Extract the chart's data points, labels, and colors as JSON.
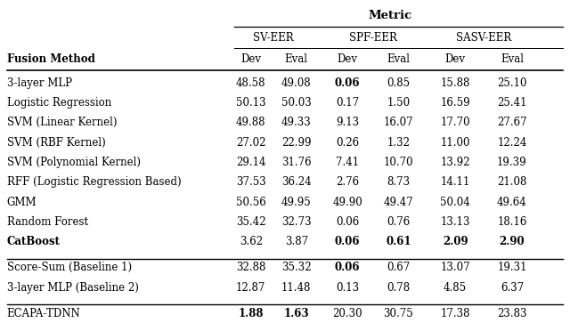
{
  "title": "Metric",
  "col_groups": [
    "SV-EER",
    "SPF-EER",
    "SASV-EER"
  ],
  "sub_cols": [
    "Dev",
    "Eval",
    "Dev",
    "Eval",
    "Dev",
    "Eval"
  ],
  "row_header": "Fusion Method",
  "rows": [
    {
      "method": "3-layer MLP",
      "vals": [
        "48.58",
        "49.08",
        "0.06",
        "0.85",
        "15.88",
        "25.10"
      ],
      "bold": [
        false,
        false,
        true,
        false,
        false,
        false
      ],
      "method_bold": false
    },
    {
      "method": "Logistic Regression",
      "vals": [
        "50.13",
        "50.03",
        "0.17",
        "1.50",
        "16.59",
        "25.41"
      ],
      "bold": [
        false,
        false,
        false,
        false,
        false,
        false
      ],
      "method_bold": false
    },
    {
      "method": "SVM (Linear Kernel)",
      "vals": [
        "49.88",
        "49.33",
        "9.13",
        "16.07",
        "17.70",
        "27.67"
      ],
      "bold": [
        false,
        false,
        false,
        false,
        false,
        false
      ],
      "method_bold": false
    },
    {
      "method": "SVM (RBF Kernel)",
      "vals": [
        "27.02",
        "22.99",
        "0.26",
        "1.32",
        "11.00",
        "12.24"
      ],
      "bold": [
        false,
        false,
        false,
        false,
        false,
        false
      ],
      "method_bold": false
    },
    {
      "method": "SVM (Polynomial Kernel)",
      "vals": [
        "29.14",
        "31.76",
        "7.41",
        "10.70",
        "13.92",
        "19.39"
      ],
      "bold": [
        false,
        false,
        false,
        false,
        false,
        false
      ],
      "method_bold": false
    },
    {
      "method": "RFF (Logistic Regression Based)",
      "vals": [
        "37.53",
        "36.24",
        "2.76",
        "8.73",
        "14.11",
        "21.08"
      ],
      "bold": [
        false,
        false,
        false,
        false,
        false,
        false
      ],
      "method_bold": false
    },
    {
      "method": "GMM",
      "vals": [
        "50.56",
        "49.95",
        "49.90",
        "49.47",
        "50.04",
        "49.64"
      ],
      "bold": [
        false,
        false,
        false,
        false,
        false,
        false
      ],
      "method_bold": false
    },
    {
      "method": "Random Forest",
      "vals": [
        "35.42",
        "32.73",
        "0.06",
        "0.76",
        "13.13",
        "18.16"
      ],
      "bold": [
        false,
        false,
        false,
        false,
        false,
        false
      ],
      "method_bold": false
    },
    {
      "method": "CatBoost",
      "vals": [
        "3.62",
        "3.87",
        "0.06",
        "0.61",
        "2.09",
        "2.90"
      ],
      "bold": [
        false,
        false,
        true,
        true,
        true,
        true
      ],
      "method_bold": true
    }
  ],
  "baseline_rows": [
    {
      "method": "Score-Sum (Baseline 1)",
      "vals": [
        "32.88",
        "35.32",
        "0.06",
        "0.67",
        "13.07",
        "19.31"
      ],
      "bold": [
        false,
        false,
        true,
        false,
        false,
        false
      ],
      "method_bold": false
    },
    {
      "method": "3-layer MLP (Baseline 2)",
      "vals": [
        "12.87",
        "11.48",
        "0.13",
        "0.78",
        "4.85",
        "6.37"
      ],
      "bold": [
        false,
        false,
        false,
        false,
        false,
        false
      ],
      "method_bold": false
    }
  ],
  "ecapa_row": {
    "method": "ECAPA-TDNN",
    "vals": [
      "1.88",
      "1.63",
      "20.30",
      "30.75",
      "17.38",
      "23.83"
    ],
    "bold": [
      true,
      true,
      false,
      false,
      false,
      false
    ],
    "method_bold": false
  },
  "bg_color": "#ffffff",
  "text_color": "#000000",
  "font_size": 8.5
}
